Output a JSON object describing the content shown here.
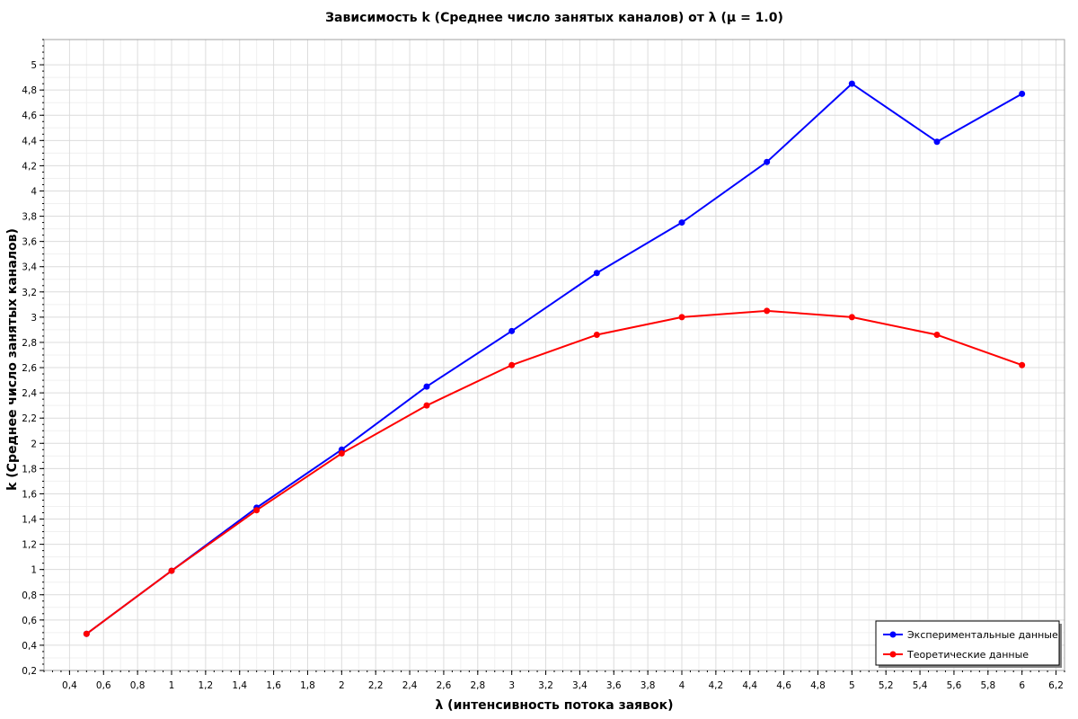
{
  "chart_data": {
    "type": "line",
    "title": "Зависимость k (Среднее число занятых каналов) от λ (μ = 1.0)",
    "xlabel": "λ (интенсивность потока заявок)",
    "ylabel": "k (Среднее число занятых каналов)",
    "xlim": [
      0.25,
      6.25
    ],
    "ylim": [
      0.2,
      5.2
    ],
    "x_ticks": [
      "0,4",
      "0,6",
      "0,8",
      "1",
      "1,2",
      "1,4",
      "1,6",
      "1,8",
      "2",
      "2,2",
      "2,4",
      "2,6",
      "2,8",
      "3",
      "3,2",
      "3,4",
      "3,6",
      "3,8",
      "4",
      "4,2",
      "4,4",
      "4,6",
      "4,8",
      "5",
      "5,2",
      "5,4",
      "5,6",
      "5,8",
      "6",
      "6,2"
    ],
    "y_ticks": [
      "0,2",
      "0,4",
      "0,6",
      "0,8",
      "1",
      "1,2",
      "1,4",
      "1,6",
      "1,8",
      "2",
      "2,2",
      "2,4",
      "2,6",
      "2,8",
      "3",
      "3,2",
      "3,4",
      "3,6",
      "3,8",
      "4",
      "4,2",
      "4,4",
      "4,6",
      "4,8",
      "5"
    ],
    "grid": true,
    "legend_position": "bottom-right",
    "x": [
      0.5,
      1.0,
      1.5,
      2.0,
      2.5,
      3.0,
      3.5,
      4.0,
      4.5,
      5.0,
      5.5,
      6.0
    ],
    "series": [
      {
        "name": "Экспериментальные данные",
        "color": "#0000ff",
        "values": [
          0.49,
          0.99,
          1.49,
          1.95,
          2.45,
          2.89,
          3.35,
          3.75,
          4.23,
          4.85,
          4.39,
          4.77
        ]
      },
      {
        "name": "Теоретические данные",
        "color": "#ff0000",
        "values": [
          0.49,
          0.99,
          1.47,
          1.92,
          2.3,
          2.62,
          2.86,
          3.0,
          3.05,
          3.0,
          2.86,
          2.62
        ]
      }
    ]
  }
}
